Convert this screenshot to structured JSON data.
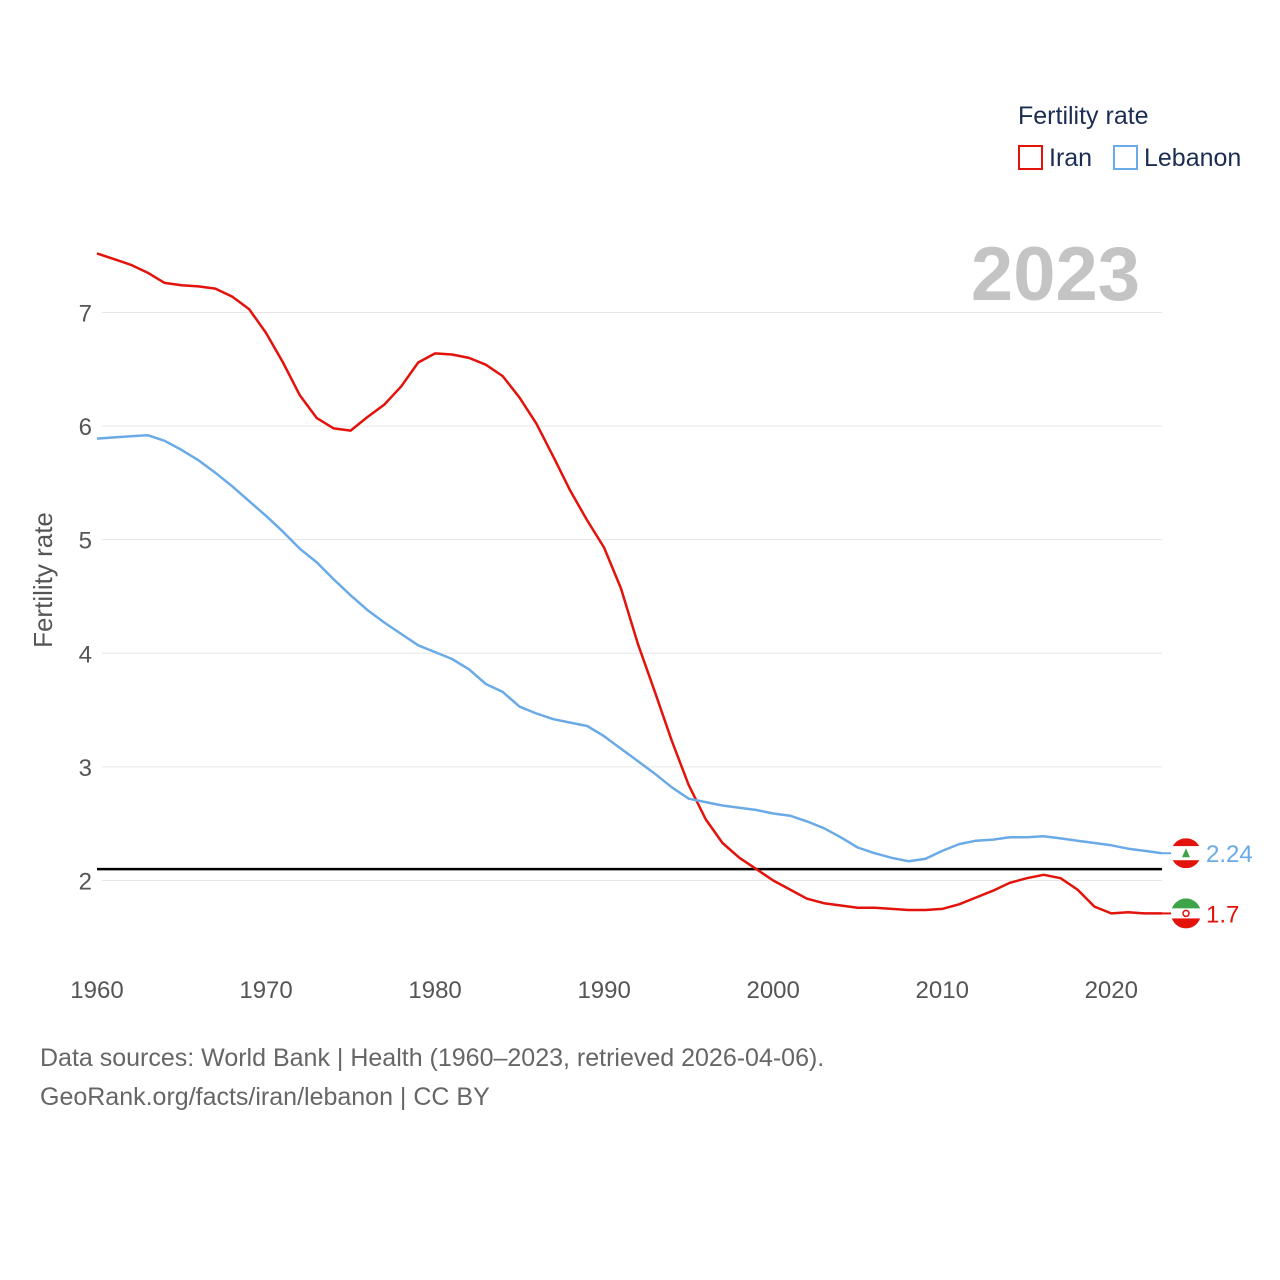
{
  "chart_data": {
    "type": "line",
    "ylabel": "Fertility rate",
    "xlabel": "",
    "year_label": "2023",
    "legend": {
      "title": "Fertility rate"
    },
    "xlim": [
      1960,
      2023
    ],
    "ylim": [
      1.3,
      7.55
    ],
    "x_ticks": [
      "1960",
      "1970",
      "1980",
      "1990",
      "2000",
      "2010",
      "2020"
    ],
    "y_ticks": [
      "2",
      "3",
      "4",
      "5",
      "6",
      "7"
    ],
    "reference_line": {
      "value": 2.1,
      "color": "#000000"
    },
    "x": [
      1960,
      1961,
      1962,
      1963,
      1964,
      1965,
      1966,
      1967,
      1968,
      1969,
      1970,
      1971,
      1972,
      1973,
      1974,
      1975,
      1976,
      1977,
      1978,
      1979,
      1980,
      1981,
      1982,
      1983,
      1984,
      1985,
      1986,
      1987,
      1988,
      1989,
      1990,
      1991,
      1992,
      1993,
      1994,
      1995,
      1996,
      1997,
      1998,
      1999,
      2000,
      2001,
      2002,
      2003,
      2004,
      2005,
      2006,
      2007,
      2008,
      2009,
      2010,
      2011,
      2012,
      2013,
      2014,
      2015,
      2016,
      2017,
      2018,
      2019,
      2020,
      2021,
      2022,
      2023
    ],
    "series": [
      {
        "name": "Iran",
        "color": "#e3120b",
        "end_label": "1.7",
        "values": [
          7.52,
          7.47,
          7.42,
          7.35,
          7.26,
          7.24,
          7.23,
          7.21,
          7.14,
          7.03,
          6.82,
          6.56,
          6.27,
          6.07,
          5.98,
          5.96,
          6.08,
          6.19,
          6.35,
          6.56,
          6.64,
          6.63,
          6.6,
          6.54,
          6.44,
          6.25,
          6.02,
          5.73,
          5.43,
          5.17,
          4.93,
          4.57,
          4.08,
          3.66,
          3.23,
          2.84,
          2.54,
          2.33,
          2.2,
          2.1,
          2.0,
          1.92,
          1.84,
          1.8,
          1.78,
          1.76,
          1.76,
          1.75,
          1.74,
          1.74,
          1.75,
          1.79,
          1.85,
          1.91,
          1.98,
          2.02,
          2.05,
          2.02,
          1.92,
          1.77,
          1.71,
          1.72,
          1.71,
          1.71
        ]
      },
      {
        "name": "Lebanon",
        "color": "#6aaae6",
        "end_label": "2.24",
        "values": [
          5.89,
          5.9,
          5.91,
          5.92,
          5.87,
          5.79,
          5.7,
          5.59,
          5.47,
          5.34,
          5.21,
          5.07,
          4.92,
          4.8,
          4.65,
          4.51,
          4.38,
          4.27,
          4.17,
          4.07,
          4.01,
          3.95,
          3.86,
          3.73,
          3.66,
          3.53,
          3.47,
          3.42,
          3.39,
          3.36,
          3.27,
          3.16,
          3.05,
          2.94,
          2.82,
          2.72,
          2.69,
          2.66,
          2.64,
          2.62,
          2.59,
          2.57,
          2.52,
          2.46,
          2.38,
          2.29,
          2.24,
          2.2,
          2.17,
          2.19,
          2.26,
          2.32,
          2.35,
          2.36,
          2.38,
          2.38,
          2.39,
          2.37,
          2.35,
          2.33,
          2.31,
          2.28,
          2.26,
          2.24
        ]
      }
    ]
  },
  "footer": {
    "line1": "Data sources: World Bank | Health (1960–2023, retrieved 2026-04-06).",
    "line2": "GeoRank.org/facts/iran/lebanon | CC BY"
  }
}
